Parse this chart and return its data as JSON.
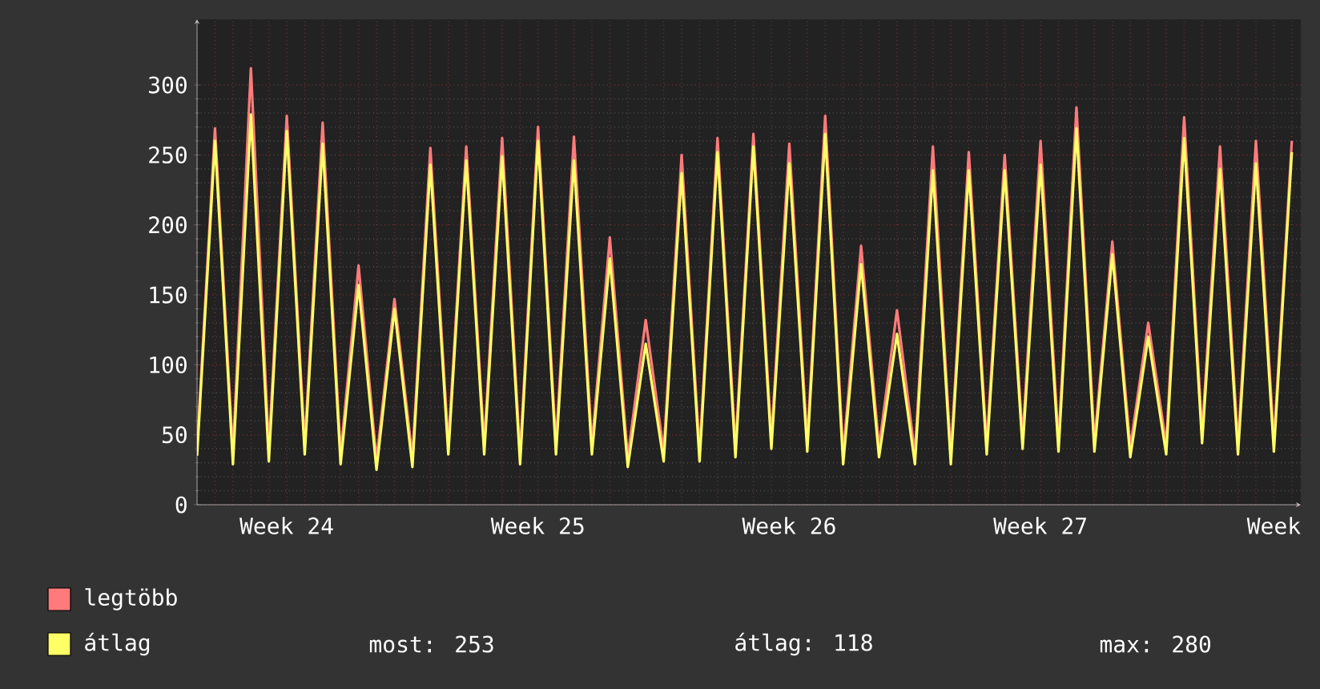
{
  "chart_data": {
    "type": "line",
    "categories": [
      null,
      null,
      null,
      null,
      null,
      "Week 24",
      null,
      null,
      null,
      null,
      null,
      null,
      null,
      null,
      null,
      null,
      null,
      null,
      null,
      "Week 25",
      null,
      null,
      null,
      null,
      null,
      null,
      null,
      null,
      null,
      null,
      null,
      null,
      null,
      "Week 26",
      null,
      null,
      null,
      null,
      null,
      null,
      null,
      null,
      null,
      null,
      null,
      null,
      null,
      "Week 27",
      null,
      null,
      null,
      null,
      null,
      null,
      null,
      null,
      null,
      null,
      null,
      null,
      "Week",
      null
    ],
    "series": [
      {
        "name": "legtöbb",
        "color": "#ff7b7b",
        "values": [
          40,
          269,
          37,
          312,
          40,
          278,
          43,
          273,
          36,
          171,
          32,
          147,
          34,
          255,
          43,
          256,
          43,
          262,
          36,
          270,
          43,
          263,
          43,
          191,
          34,
          132,
          38,
          250,
          38,
          262,
          41,
          265,
          47,
          258,
          45,
          278,
          36,
          185,
          41,
          139,
          36,
          256,
          36,
          252,
          43,
          250,
          47,
          260,
          45,
          284,
          45,
          188,
          41,
          130,
          43,
          277,
          51,
          256,
          43,
          260,
          45,
          260
        ]
      },
      {
        "name": "átlag",
        "color": "#ffff66",
        "values": [
          35,
          260,
          29,
          279,
          31,
          267,
          36,
          258,
          29,
          157,
          25,
          140,
          27,
          243,
          36,
          246,
          36,
          249,
          29,
          260,
          36,
          246,
          36,
          176,
          27,
          115,
          31,
          237,
          31,
          252,
          34,
          256,
          40,
          244,
          38,
          265,
          29,
          172,
          34,
          122,
          29,
          239,
          29,
          239,
          36,
          239,
          40,
          243,
          38,
          269,
          38,
          179,
          34,
          120,
          36,
          262,
          44,
          240,
          36,
          244,
          38,
          252
        ]
      }
    ],
    "ylim": [
      0,
      347
    ],
    "yticks": [
      0,
      50,
      100,
      150,
      200,
      250,
      300
    ],
    "grid": true,
    "legend": "bottom left",
    "annotations": [
      "most: 253",
      "átlag: 118",
      "max: 280"
    ]
  }
}
